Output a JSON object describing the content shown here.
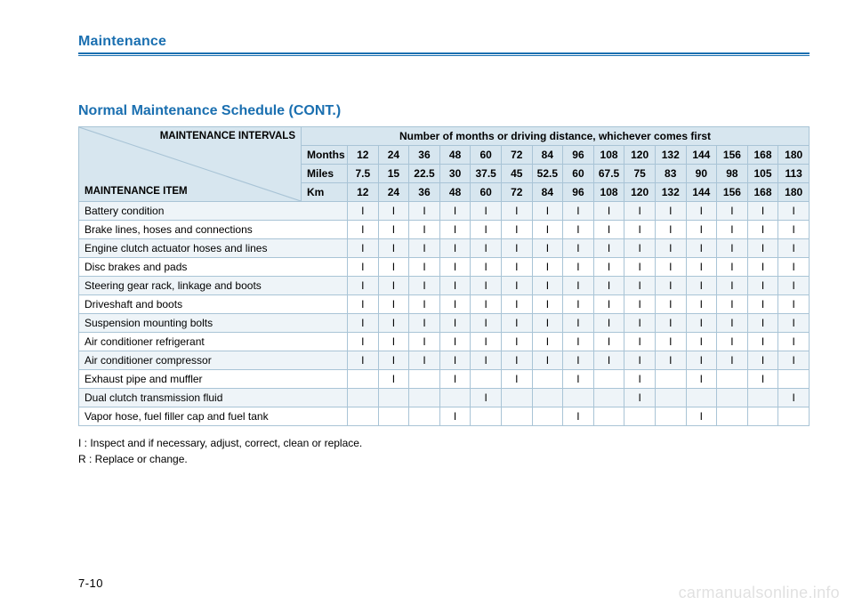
{
  "section_header": "Maintenance",
  "title": "Normal Maintenance Schedule (CONT.)",
  "corner_top": "MAINTENANCE INTERVALS",
  "corner_bot": "MAINTENANCE ITEM",
  "interval_header": "Number of months or driving distance, whichever comes first",
  "unit_rows": [
    {
      "label": "Months",
      "values": [
        "12",
        "24",
        "36",
        "48",
        "60",
        "72",
        "84",
        "96",
        "108",
        "120",
        "132",
        "144",
        "156",
        "168",
        "180"
      ]
    },
    {
      "label": "Miles",
      "values": [
        "7.5",
        "15",
        "22.5",
        "30",
        "37.5",
        "45",
        "52.5",
        "60",
        "67.5",
        "75",
        "83",
        "90",
        "98",
        "105",
        "113"
      ]
    },
    {
      "label": "Km",
      "values": [
        "12",
        "24",
        "36",
        "48",
        "60",
        "72",
        "84",
        "96",
        "108",
        "120",
        "132",
        "144",
        "156",
        "168",
        "180"
      ]
    }
  ],
  "items": [
    {
      "name": "Battery condition",
      "cells": [
        "I",
        "I",
        "I",
        "I",
        "I",
        "I",
        "I",
        "I",
        "I",
        "I",
        "I",
        "I",
        "I",
        "I",
        "I"
      ]
    },
    {
      "name": "Brake lines, hoses and connections",
      "cells": [
        "I",
        "I",
        "I",
        "I",
        "I",
        "I",
        "I",
        "I",
        "I",
        "I",
        "I",
        "I",
        "I",
        "I",
        "I"
      ]
    },
    {
      "name": "Engine clutch actuator hoses and lines",
      "cells": [
        "I",
        "I",
        "I",
        "I",
        "I",
        "I",
        "I",
        "I",
        "I",
        "I",
        "I",
        "I",
        "I",
        "I",
        "I"
      ]
    },
    {
      "name": "Disc brakes and pads",
      "cells": [
        "I",
        "I",
        "I",
        "I",
        "I",
        "I",
        "I",
        "I",
        "I",
        "I",
        "I",
        "I",
        "I",
        "I",
        "I"
      ]
    },
    {
      "name": "Steering gear rack, linkage and boots",
      "cells": [
        "I",
        "I",
        "I",
        "I",
        "I",
        "I",
        "I",
        "I",
        "I",
        "I",
        "I",
        "I",
        "I",
        "I",
        "I"
      ]
    },
    {
      "name": "Driveshaft and boots",
      "cells": [
        "I",
        "I",
        "I",
        "I",
        "I",
        "I",
        "I",
        "I",
        "I",
        "I",
        "I",
        "I",
        "I",
        "I",
        "I"
      ]
    },
    {
      "name": "Suspension mounting bolts",
      "cells": [
        "I",
        "I",
        "I",
        "I",
        "I",
        "I",
        "I",
        "I",
        "I",
        "I",
        "I",
        "I",
        "I",
        "I",
        "I"
      ]
    },
    {
      "name": "Air conditioner refrigerant",
      "cells": [
        "I",
        "I",
        "I",
        "I",
        "I",
        "I",
        "I",
        "I",
        "I",
        "I",
        "I",
        "I",
        "I",
        "I",
        "I"
      ]
    },
    {
      "name": "Air conditioner compressor",
      "cells": [
        "I",
        "I",
        "I",
        "I",
        "I",
        "I",
        "I",
        "I",
        "I",
        "I",
        "I",
        "I",
        "I",
        "I",
        "I"
      ]
    },
    {
      "name": "Exhaust pipe and muffler",
      "cells": [
        "",
        "I",
        "",
        "I",
        "",
        "I",
        "",
        "I",
        "",
        "I",
        "",
        "I",
        "",
        "I",
        ""
      ]
    },
    {
      "name": "Dual clutch transmission fluid",
      "cells": [
        "",
        "",
        "",
        "",
        "I",
        "",
        "",
        "",
        "",
        "I",
        "",
        "",
        "",
        "",
        "I"
      ]
    },
    {
      "name": "Vapor hose, fuel filler cap and fuel tank",
      "cells": [
        "",
        "",
        "",
        "I",
        "",
        "",
        "",
        "I",
        "",
        "",
        "",
        "I",
        "",
        "",
        ""
      ]
    }
  ],
  "legend": {
    "i": "I   : Inspect and if necessary, adjust, correct, clean or replace.",
    "r": "R  : Replace or change."
  },
  "page_num": "7-10",
  "watermark": "carmanualsonline.info",
  "colors": {
    "accent": "#1a6fb0",
    "header_bg": "#d7e6ef",
    "row_alt": "#eef4f8",
    "border": "#a9c4d6"
  }
}
